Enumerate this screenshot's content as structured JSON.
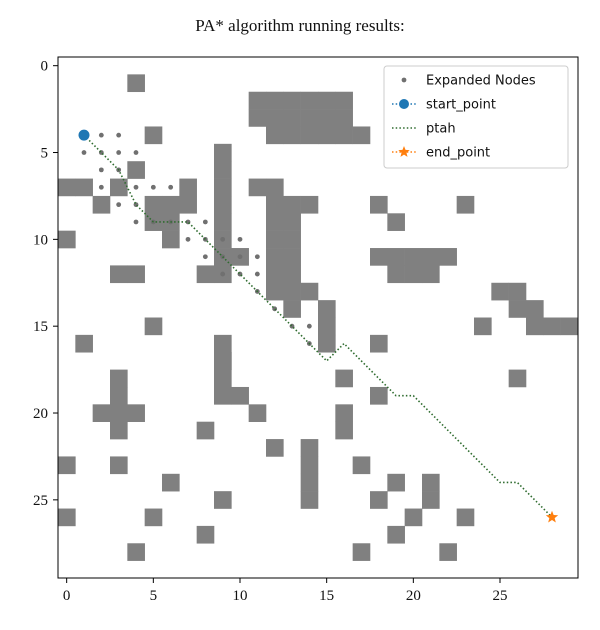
{
  "title": "PA* algorithm running results:",
  "chart_data": {
    "type": "scatter",
    "grid_size": [
      30,
      30
    ],
    "xlim": [
      -0.5,
      29.5
    ],
    "ylim": [
      29.5,
      -0.5
    ],
    "y_inverted": true,
    "xticks": [
      0,
      5,
      10,
      15,
      20,
      25
    ],
    "yticks": [
      0,
      5,
      10,
      15,
      20,
      25
    ],
    "obstacle_color": "#808080",
    "legend_position": "top-right",
    "obstacles": [
      [
        4,
        1
      ],
      [
        11,
        2
      ],
      [
        12,
        2
      ],
      [
        13,
        2
      ],
      [
        14,
        2
      ],
      [
        15,
        2
      ],
      [
        16,
        2
      ],
      [
        11,
        3
      ],
      [
        12,
        3
      ],
      [
        13,
        3
      ],
      [
        14,
        3
      ],
      [
        15,
        3
      ],
      [
        16,
        3
      ],
      [
        12,
        4
      ],
      [
        13,
        4
      ],
      [
        14,
        4
      ],
      [
        15,
        4
      ],
      [
        16,
        4
      ],
      [
        5,
        4
      ],
      [
        17,
        4
      ],
      [
        4,
        6
      ],
      [
        9,
        5
      ],
      [
        9,
        6
      ],
      [
        0,
        7
      ],
      [
        1,
        7
      ],
      [
        3,
        7
      ],
      [
        7,
        7
      ],
      [
        9,
        7
      ],
      [
        11,
        7
      ],
      [
        12,
        7
      ],
      [
        2,
        8
      ],
      [
        5,
        8
      ],
      [
        6,
        8
      ],
      [
        7,
        8
      ],
      [
        9,
        8
      ],
      [
        12,
        8
      ],
      [
        13,
        8
      ],
      [
        14,
        8
      ],
      [
        18,
        8
      ],
      [
        23,
        8
      ],
      [
        5,
        9
      ],
      [
        6,
        9
      ],
      [
        9,
        9
      ],
      [
        12,
        9
      ],
      [
        13,
        9
      ],
      [
        19,
        9
      ],
      [
        0,
        10
      ],
      [
        6,
        10
      ],
      [
        9,
        10
      ],
      [
        12,
        10
      ],
      [
        13,
        10
      ],
      [
        9,
        11
      ],
      [
        10,
        11
      ],
      [
        12,
        11
      ],
      [
        13,
        11
      ],
      [
        18,
        11
      ],
      [
        19,
        11
      ],
      [
        20,
        11
      ],
      [
        21,
        11
      ],
      [
        22,
        11
      ],
      [
        3,
        12
      ],
      [
        4,
        12
      ],
      [
        8,
        12
      ],
      [
        9,
        12
      ],
      [
        12,
        12
      ],
      [
        13,
        12
      ],
      [
        19,
        12
      ],
      [
        20,
        12
      ],
      [
        21,
        12
      ],
      [
        12,
        13
      ],
      [
        13,
        13
      ],
      [
        14,
        13
      ],
      [
        25,
        13
      ],
      [
        26,
        13
      ],
      [
        13,
        14
      ],
      [
        15,
        14
      ],
      [
        26,
        14
      ],
      [
        27,
        14
      ],
      [
        5,
        15
      ],
      [
        15,
        15
      ],
      [
        24,
        15
      ],
      [
        27,
        15
      ],
      [
        28,
        15
      ],
      [
        29,
        15
      ],
      [
        9,
        16
      ],
      [
        15,
        16
      ],
      [
        18,
        16
      ],
      [
        1,
        16
      ],
      [
        9,
        17
      ],
      [
        9,
        18
      ],
      [
        9,
        19
      ],
      [
        3,
        18
      ],
      [
        3,
        19
      ],
      [
        3,
        20
      ],
      [
        3,
        21
      ],
      [
        9,
        17
      ],
      [
        16,
        18
      ],
      [
        26,
        18
      ],
      [
        10,
        19
      ],
      [
        18,
        19
      ],
      [
        16,
        20
      ],
      [
        2,
        20
      ],
      [
        4,
        20
      ],
      [
        11,
        20
      ],
      [
        8,
        21
      ],
      [
        16,
        21
      ],
      [
        12,
        22
      ],
      [
        14,
        22
      ],
      [
        0,
        23
      ],
      [
        3,
        23
      ],
      [
        14,
        23
      ],
      [
        17,
        23
      ],
      [
        6,
        24
      ],
      [
        14,
        24
      ],
      [
        19,
        24
      ],
      [
        21,
        24
      ],
      [
        9,
        25
      ],
      [
        14,
        25
      ],
      [
        18,
        25
      ],
      [
        21,
        25
      ],
      [
        0,
        26
      ],
      [
        5,
        26
      ],
      [
        20,
        26
      ],
      [
        23,
        26
      ],
      [
        8,
        27
      ],
      [
        19,
        27
      ],
      [
        4,
        28
      ],
      [
        17,
        28
      ],
      [
        22,
        28
      ]
    ],
    "start_point": [
      1,
      4
    ],
    "end_point": [
      28,
      26
    ],
    "path": [
      [
        1,
        4
      ],
      [
        2,
        5
      ],
      [
        3,
        6
      ],
      [
        4,
        8
      ],
      [
        5,
        9
      ],
      [
        6,
        9
      ],
      [
        7,
        9
      ],
      [
        8,
        10
      ],
      [
        9,
        11
      ],
      [
        10,
        12
      ],
      [
        11,
        13
      ],
      [
        12,
        14
      ],
      [
        13,
        15
      ],
      [
        14,
        16
      ],
      [
        15,
        17
      ],
      [
        16,
        16
      ],
      [
        17,
        17
      ],
      [
        18,
        18
      ],
      [
        19,
        19
      ],
      [
        20,
        19
      ],
      [
        21,
        20
      ],
      [
        22,
        21
      ],
      [
        23,
        22
      ],
      [
        24,
        23
      ],
      [
        25,
        24
      ],
      [
        26,
        24
      ],
      [
        27,
        25
      ],
      [
        28,
        26
      ]
    ],
    "expanded_nodes": [
      [
        1,
        4
      ],
      [
        2,
        4
      ],
      [
        3,
        4
      ],
      [
        1,
        5
      ],
      [
        2,
        5
      ],
      [
        3,
        5
      ],
      [
        4,
        5
      ],
      [
        2,
        6
      ],
      [
        3,
        6
      ],
      [
        2,
        7
      ],
      [
        4,
        7
      ],
      [
        5,
        7
      ],
      [
        6,
        7
      ],
      [
        4,
        8
      ],
      [
        3,
        8
      ],
      [
        4,
        9
      ],
      [
        5,
        9
      ],
      [
        6,
        9
      ],
      [
        7,
        9
      ],
      [
        8,
        9
      ],
      [
        7,
        10
      ],
      [
        8,
        10
      ],
      [
        9,
        10
      ],
      [
        10,
        10
      ],
      [
        8,
        11
      ],
      [
        9,
        11
      ],
      [
        10,
        11
      ],
      [
        11,
        11
      ],
      [
        9,
        12
      ],
      [
        10,
        12
      ],
      [
        11,
        12
      ],
      [
        11,
        13
      ],
      [
        12,
        14
      ],
      [
        13,
        15
      ],
      [
        14,
        15
      ],
      [
        14,
        16
      ]
    ],
    "legend": [
      {
        "label": "Expanded Nodes",
        "marker": "dot",
        "color": "#707070"
      },
      {
        "label": "start_point",
        "marker": "circle-dotted-line",
        "color": "#1f77b4"
      },
      {
        "label": "ptah",
        "marker": "dotted-line",
        "color": "#2e6b2e"
      },
      {
        "label": "end_point",
        "marker": "star-dotted-line",
        "color": "#ff7f0e"
      }
    ]
  }
}
